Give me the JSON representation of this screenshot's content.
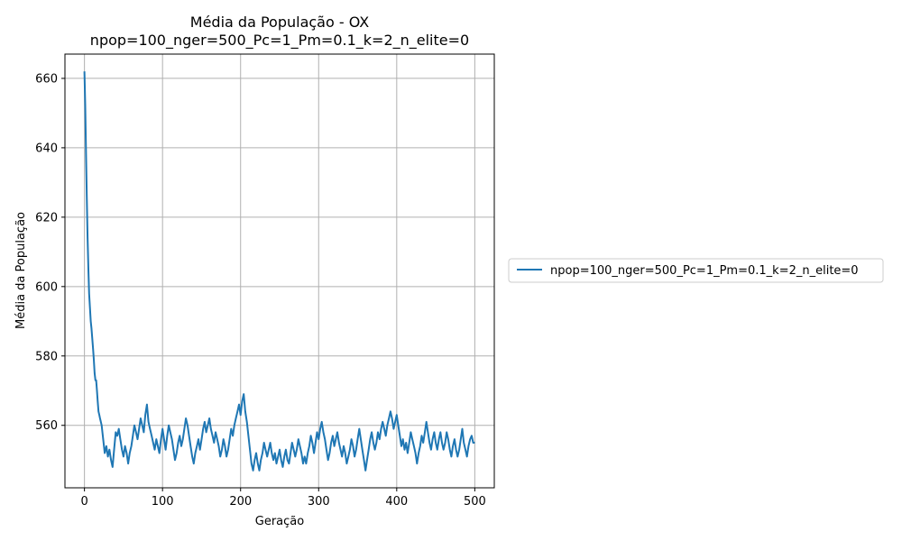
{
  "chart_data": {
    "type": "line",
    "title": "Média da População - OX",
    "subtitle": "npop=100_nger=500_Pc=1_Pm=0.1_k=2_n_elite=0",
    "xlabel": "Geração",
    "ylabel": "Média da População",
    "xlim": [
      -25,
      525
    ],
    "ylim": [
      542,
      667
    ],
    "xticks": [
      0,
      100,
      200,
      300,
      400,
      500
    ],
    "yticks": [
      560,
      580,
      600,
      620,
      640,
      660
    ],
    "grid": true,
    "legend_position": "center-right-outside",
    "series": [
      {
        "name": "npop=100_nger=500_Pc=1_Pm=0.1_k=2_n_elite=0",
        "color": "#1f77b4",
        "points": [
          [
            0,
            662
          ],
          [
            1,
            652
          ],
          [
            2,
            638
          ],
          [
            3,
            626
          ],
          [
            4,
            614
          ],
          [
            5,
            605
          ],
          [
            6,
            598
          ],
          [
            7,
            594
          ],
          [
            8,
            590
          ],
          [
            9,
            588
          ],
          [
            10,
            585
          ],
          [
            11,
            582
          ],
          [
            12,
            579
          ],
          [
            13,
            575
          ],
          [
            14,
            573
          ],
          [
            15,
            573
          ],
          [
            16,
            570
          ],
          [
            17,
            567
          ],
          [
            18,
            564
          ],
          [
            19,
            563
          ],
          [
            20,
            562
          ],
          [
            22,
            560
          ],
          [
            24,
            556
          ],
          [
            26,
            552
          ],
          [
            28,
            554
          ],
          [
            30,
            551
          ],
          [
            32,
            553
          ],
          [
            34,
            550
          ],
          [
            36,
            548
          ],
          [
            38,
            553
          ],
          [
            40,
            558
          ],
          [
            42,
            557
          ],
          [
            44,
            559
          ],
          [
            46,
            556
          ],
          [
            48,
            553
          ],
          [
            50,
            551
          ],
          [
            52,
            554
          ],
          [
            54,
            552
          ],
          [
            56,
            549
          ],
          [
            58,
            552
          ],
          [
            60,
            554
          ],
          [
            62,
            557
          ],
          [
            64,
            560
          ],
          [
            66,
            558
          ],
          [
            68,
            556
          ],
          [
            70,
            559
          ],
          [
            72,
            562
          ],
          [
            74,
            560
          ],
          [
            76,
            558
          ],
          [
            78,
            563
          ],
          [
            80,
            566
          ],
          [
            82,
            561
          ],
          [
            84,
            559
          ],
          [
            86,
            557
          ],
          [
            88,
            555
          ],
          [
            90,
            553
          ],
          [
            92,
            556
          ],
          [
            94,
            554
          ],
          [
            96,
            552
          ],
          [
            98,
            556
          ],
          [
            100,
            559
          ],
          [
            102,
            556
          ],
          [
            104,
            553
          ],
          [
            106,
            557
          ],
          [
            108,
            560
          ],
          [
            110,
            558
          ],
          [
            112,
            556
          ],
          [
            114,
            553
          ],
          [
            116,
            550
          ],
          [
            118,
            552
          ],
          [
            120,
            555
          ],
          [
            122,
            557
          ],
          [
            124,
            554
          ],
          [
            126,
            556
          ],
          [
            128,
            559
          ],
          [
            130,
            562
          ],
          [
            132,
            560
          ],
          [
            134,
            557
          ],
          [
            136,
            554
          ],
          [
            138,
            551
          ],
          [
            140,
            549
          ],
          [
            142,
            552
          ],
          [
            144,
            554
          ],
          [
            146,
            556
          ],
          [
            148,
            553
          ],
          [
            150,
            556
          ],
          [
            152,
            559
          ],
          [
            154,
            561
          ],
          [
            156,
            558
          ],
          [
            158,
            560
          ],
          [
            160,
            562
          ],
          [
            162,
            559
          ],
          [
            164,
            557
          ],
          [
            166,
            555
          ],
          [
            168,
            558
          ],
          [
            170,
            556
          ],
          [
            172,
            554
          ],
          [
            174,
            551
          ],
          [
            176,
            553
          ],
          [
            178,
            556
          ],
          [
            180,
            554
          ],
          [
            182,
            551
          ],
          [
            184,
            553
          ],
          [
            186,
            556
          ],
          [
            188,
            559
          ],
          [
            190,
            557
          ],
          [
            192,
            560
          ],
          [
            194,
            562
          ],
          [
            196,
            564
          ],
          [
            198,
            566
          ],
          [
            200,
            563
          ],
          [
            202,
            567
          ],
          [
            204,
            569
          ],
          [
            206,
            564
          ],
          [
            208,
            561
          ],
          [
            210,
            557
          ],
          [
            212,
            553
          ],
          [
            214,
            549
          ],
          [
            216,
            547
          ],
          [
            218,
            550
          ],
          [
            220,
            552
          ],
          [
            222,
            549
          ],
          [
            224,
            547
          ],
          [
            226,
            550
          ],
          [
            228,
            552
          ],
          [
            230,
            555
          ],
          [
            232,
            553
          ],
          [
            234,
            551
          ],
          [
            236,
            553
          ],
          [
            238,
            555
          ],
          [
            240,
            552
          ],
          [
            242,
            550
          ],
          [
            244,
            552
          ],
          [
            246,
            549
          ],
          [
            248,
            551
          ],
          [
            250,
            553
          ],
          [
            252,
            550
          ],
          [
            254,
            548
          ],
          [
            256,
            551
          ],
          [
            258,
            553
          ],
          [
            260,
            550
          ],
          [
            262,
            549
          ],
          [
            264,
            552
          ],
          [
            266,
            555
          ],
          [
            268,
            553
          ],
          [
            270,
            551
          ],
          [
            272,
            553
          ],
          [
            274,
            556
          ],
          [
            276,
            554
          ],
          [
            278,
            552
          ],
          [
            280,
            549
          ],
          [
            282,
            551
          ],
          [
            284,
            549
          ],
          [
            286,
            552
          ],
          [
            288,
            554
          ],
          [
            290,
            557
          ],
          [
            292,
            555
          ],
          [
            294,
            552
          ],
          [
            296,
            555
          ],
          [
            298,
            558
          ],
          [
            300,
            556
          ],
          [
            302,
            559
          ],
          [
            304,
            561
          ],
          [
            306,
            558
          ],
          [
            308,
            556
          ],
          [
            310,
            553
          ],
          [
            312,
            550
          ],
          [
            314,
            552
          ],
          [
            316,
            555
          ],
          [
            318,
            557
          ],
          [
            320,
            554
          ],
          [
            322,
            556
          ],
          [
            324,
            558
          ],
          [
            326,
            555
          ],
          [
            328,
            553
          ],
          [
            330,
            551
          ],
          [
            332,
            554
          ],
          [
            334,
            552
          ],
          [
            336,
            549
          ],
          [
            338,
            551
          ],
          [
            340,
            553
          ],
          [
            342,
            556
          ],
          [
            344,
            554
          ],
          [
            346,
            551
          ],
          [
            348,
            553
          ],
          [
            350,
            556
          ],
          [
            352,
            559
          ],
          [
            354,
            556
          ],
          [
            356,
            553
          ],
          [
            358,
            550
          ],
          [
            360,
            547
          ],
          [
            362,
            550
          ],
          [
            364,
            553
          ],
          [
            366,
            556
          ],
          [
            368,
            558
          ],
          [
            370,
            555
          ],
          [
            372,
            553
          ],
          [
            374,
            555
          ],
          [
            376,
            558
          ],
          [
            378,
            556
          ],
          [
            380,
            559
          ],
          [
            382,
            561
          ],
          [
            384,
            559
          ],
          [
            386,
            557
          ],
          [
            388,
            560
          ],
          [
            390,
            562
          ],
          [
            392,
            564
          ],
          [
            394,
            562
          ],
          [
            396,
            559
          ],
          [
            398,
            561
          ],
          [
            400,
            563
          ],
          [
            402,
            560
          ],
          [
            404,
            557
          ],
          [
            406,
            554
          ],
          [
            408,
            556
          ],
          [
            410,
            553
          ],
          [
            412,
            555
          ],
          [
            414,
            552
          ],
          [
            416,
            555
          ],
          [
            418,
            558
          ],
          [
            420,
            556
          ],
          [
            422,
            554
          ],
          [
            424,
            552
          ],
          [
            426,
            549
          ],
          [
            428,
            552
          ],
          [
            430,
            554
          ],
          [
            432,
            557
          ],
          [
            434,
            555
          ],
          [
            436,
            558
          ],
          [
            438,
            561
          ],
          [
            440,
            558
          ],
          [
            442,
            555
          ],
          [
            444,
            553
          ],
          [
            446,
            556
          ],
          [
            448,
            558
          ],
          [
            450,
            555
          ],
          [
            452,
            553
          ],
          [
            454,
            556
          ],
          [
            456,
            558
          ],
          [
            458,
            555
          ],
          [
            460,
            553
          ],
          [
            462,
            555
          ],
          [
            464,
            558
          ],
          [
            466,
            556
          ],
          [
            468,
            553
          ],
          [
            470,
            551
          ],
          [
            472,
            554
          ],
          [
            474,
            556
          ],
          [
            476,
            553
          ],
          [
            478,
            551
          ],
          [
            480,
            553
          ],
          [
            482,
            556
          ],
          [
            484,
            559
          ],
          [
            486,
            555
          ],
          [
            488,
            553
          ],
          [
            490,
            551
          ],
          [
            492,
            554
          ],
          [
            494,
            556
          ],
          [
            496,
            557
          ],
          [
            498,
            555
          ],
          [
            500,
            555
          ]
        ]
      }
    ]
  }
}
